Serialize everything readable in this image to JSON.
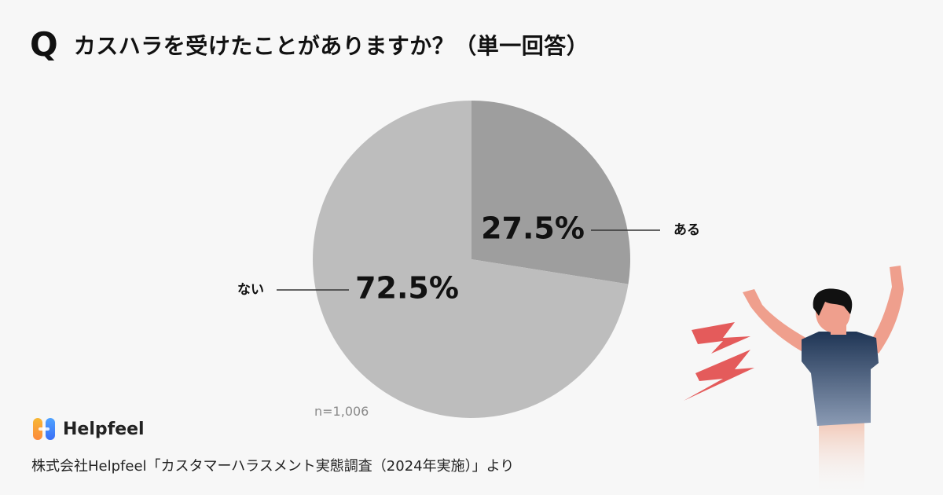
{
  "header": {
    "q_mark": "Q",
    "title": "カスハラを受けたことがありますか？（単一回答）"
  },
  "chart_data": {
    "type": "pie",
    "title": "カスハラを受けたことがありますか？（単一回答）",
    "slices": [
      {
        "label": "ある",
        "value": 27.5,
        "value_label": "27.5%",
        "color": "#9e9e9e"
      },
      {
        "label": "ない",
        "value": 72.5,
        "value_label": "72.5%",
        "color": "#bdbdbd"
      }
    ],
    "note": "n=1,006"
  },
  "brand": {
    "name": "Helpfeel",
    "logo_colors": [
      "#f5a623",
      "#3a8ef6"
    ]
  },
  "source": "株式会社Helpfeel「カスタマーハラスメント実態調査（2024年実施）」より",
  "illustration": {
    "icon": "stressed-person-illustration",
    "accent_color": "#e45b5b"
  }
}
